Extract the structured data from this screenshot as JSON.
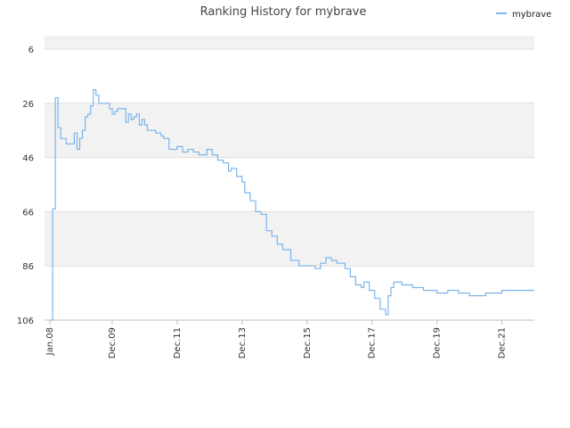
{
  "chart_data": {
    "type": "line",
    "title": "Ranking History for mybrave",
    "xlabel": "",
    "ylabel": "",
    "x_tick_labels": [
      "Jan.08",
      "Dec.09",
      "Dec.11",
      "Dec.13",
      "Dec.15",
      "Dec.17",
      "Dec.19",
      "Dec.21"
    ],
    "x_tick_dates": [
      "2008-01",
      "2009-12",
      "2011-12",
      "2013-12",
      "2015-12",
      "2017-12",
      "2019-12",
      "2021-12"
    ],
    "xlim": [
      "2007-11",
      "2022-12"
    ],
    "y_ticks": [
      6,
      26,
      46,
      66,
      86,
      106
    ],
    "ylim": [
      106,
      6
    ],
    "y_inverted": true,
    "grid": true,
    "band_color": "#f2f2f2",
    "legend": {
      "position": "top-right"
    },
    "series": [
      {
        "name": "mybrave",
        "color": "#7cb5ec",
        "points": [
          [
            "2008-01",
            106
          ],
          [
            "2008-02",
            65
          ],
          [
            "2008-03",
            24
          ],
          [
            "2008-04",
            35
          ],
          [
            "2008-05",
            39
          ],
          [
            "2008-07",
            41
          ],
          [
            "2008-09",
            41
          ],
          [
            "2008-10",
            37
          ],
          [
            "2008-11",
            43
          ],
          [
            "2008-12",
            39
          ],
          [
            "2009-01",
            36
          ],
          [
            "2009-02",
            31
          ],
          [
            "2009-03",
            30
          ],
          [
            "2009-04",
            27
          ],
          [
            "2009-05",
            21
          ],
          [
            "2009-06",
            23
          ],
          [
            "2009-07",
            26
          ],
          [
            "2009-08",
            26
          ],
          [
            "2009-09",
            26
          ],
          [
            "2009-10",
            26
          ],
          [
            "2009-11",
            28
          ],
          [
            "2009-12",
            30
          ],
          [
            "2010-01",
            29
          ],
          [
            "2010-02",
            28
          ],
          [
            "2010-03",
            28
          ],
          [
            "2010-04",
            28
          ],
          [
            "2010-05",
            33
          ],
          [
            "2010-06",
            30
          ],
          [
            "2010-07",
            32
          ],
          [
            "2010-08",
            31
          ],
          [
            "2010-09",
            30
          ],
          [
            "2010-10",
            34
          ],
          [
            "2010-11",
            32
          ],
          [
            "2010-12",
            34
          ],
          [
            "2011-01",
            36
          ],
          [
            "2011-02",
            36
          ],
          [
            "2011-04",
            37
          ],
          [
            "2011-06",
            38
          ],
          [
            "2011-07",
            39
          ],
          [
            "2011-09",
            43
          ],
          [
            "2011-12",
            42
          ],
          [
            "2012-02",
            44
          ],
          [
            "2012-04",
            43
          ],
          [
            "2012-06",
            44
          ],
          [
            "2012-08",
            45
          ],
          [
            "2012-10",
            45
          ],
          [
            "2012-11",
            43
          ],
          [
            "2013-01",
            45
          ],
          [
            "2013-03",
            47
          ],
          [
            "2013-05",
            48
          ],
          [
            "2013-07",
            51
          ],
          [
            "2013-08",
            50
          ],
          [
            "2013-10",
            53
          ],
          [
            "2013-12",
            55
          ],
          [
            "2014-01",
            59
          ],
          [
            "2014-03",
            62
          ],
          [
            "2014-05",
            66
          ],
          [
            "2014-07",
            67
          ],
          [
            "2014-09",
            73
          ],
          [
            "2014-11",
            75
          ],
          [
            "2015-01",
            78
          ],
          [
            "2015-03",
            80
          ],
          [
            "2015-06",
            84
          ],
          [
            "2015-09",
            86
          ],
          [
            "2015-12",
            86
          ],
          [
            "2016-03",
            87
          ],
          [
            "2016-05",
            85
          ],
          [
            "2016-07",
            83
          ],
          [
            "2016-09",
            84
          ],
          [
            "2016-11",
            85
          ],
          [
            "2017-02",
            87
          ],
          [
            "2017-04",
            90
          ],
          [
            "2017-06",
            93
          ],
          [
            "2017-08",
            94
          ],
          [
            "2017-09",
            92
          ],
          [
            "2017-11",
            95
          ],
          [
            "2018-01",
            98
          ],
          [
            "2018-03",
            102
          ],
          [
            "2018-05",
            104
          ],
          [
            "2018-06",
            97
          ],
          [
            "2018-07",
            94
          ],
          [
            "2018-08",
            92
          ],
          [
            "2018-11",
            93
          ],
          [
            "2019-03",
            94
          ],
          [
            "2019-07",
            95
          ],
          [
            "2019-12",
            96
          ],
          [
            "2020-04",
            95
          ],
          [
            "2020-08",
            96
          ],
          [
            "2020-12",
            97
          ],
          [
            "2021-06",
            96
          ],
          [
            "2021-12",
            95
          ],
          [
            "2022-06",
            95
          ],
          [
            "2022-12",
            95
          ]
        ]
      }
    ]
  }
}
